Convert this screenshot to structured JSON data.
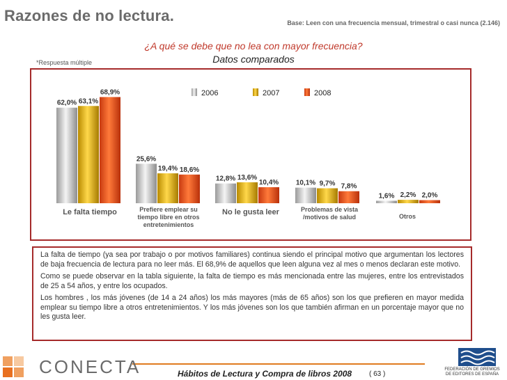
{
  "header": {
    "title": "Razones de no lectura.",
    "base": "Base: Leen con una frecuencia mensual, trimestral o casi nunca (2.146)",
    "question": "¿A qué se debe que no lea con mayor frecuencia?",
    "subquestion": "Datos comparados",
    "note": "*Respuesta múltiple"
  },
  "colors": {
    "s2006": "#c8c8c8",
    "s2007": "#d4a500",
    "s2008": "#e8501a",
    "frame": "#a52a2a"
  },
  "chart_data": {
    "type": "bar",
    "title": "¿A qué se debe que no lea con mayor frecuencia?",
    "categories": [
      "Le falta tiempo",
      "Prefiere emplear su tiempo libre en otros entretenimientos",
      "No le gusta leer",
      "Problemas de vista /motivos de salud",
      "Otros"
    ],
    "series": [
      {
        "name": "2006",
        "values": [
          62.0,
          25.6,
          12.8,
          10.1,
          1.6
        ],
        "labels": [
          "62,0%",
          "25,6%",
          "12,8%",
          "10,1%",
          "1,6%"
        ]
      },
      {
        "name": "2007",
        "values": [
          63.1,
          19.4,
          13.6,
          9.7,
          2.2
        ],
        "labels": [
          "63,1%",
          "19,4%",
          "13,6%",
          "9,7%",
          "2,2%"
        ]
      },
      {
        "name": "2008",
        "values": [
          68.9,
          18.6,
          10.4,
          7.8,
          2.0
        ],
        "labels": [
          "68,9%",
          "18,6%",
          "10,4%",
          "7,8%",
          "2,0%"
        ]
      }
    ],
    "ylim": [
      0,
      70
    ],
    "legend": "top-center"
  },
  "text": {
    "p1": "La falta de tiempo (ya sea por trabajo o por motivos familiares) continua siendo el principal motivo que argumentan los lectores de baja frecuencia de lectura para no leer más. El 68,9% de aquellos que leen alguna vez al mes o menos declaran este motivo.",
    "p2": "Como se puede observar en la tabla siguiente, la falta de tiempo es más mencionada entre las mujeres, entre los entrevistados de 25 a 54 años, y entre los ocupados.",
    "p3": "Los hombres , los más jóvenes (de 14 a 24 años) los más mayores (más de 65 años) son los que prefieren en mayor medida emplear su tiempo libre a otros entretenimientos. Y los más jóvenes son los que también afirman en un porcentaje mayor que no les gusta leer."
  },
  "footer": {
    "publication": "Hábitos de Lectura y Compra de libros 2008",
    "page": "( 63 )",
    "company": "CONECTA",
    "federation_lines": [
      "FEDERACIÓN DE GREMIOS",
      "DE EDITORES DE ESPAÑA"
    ]
  }
}
